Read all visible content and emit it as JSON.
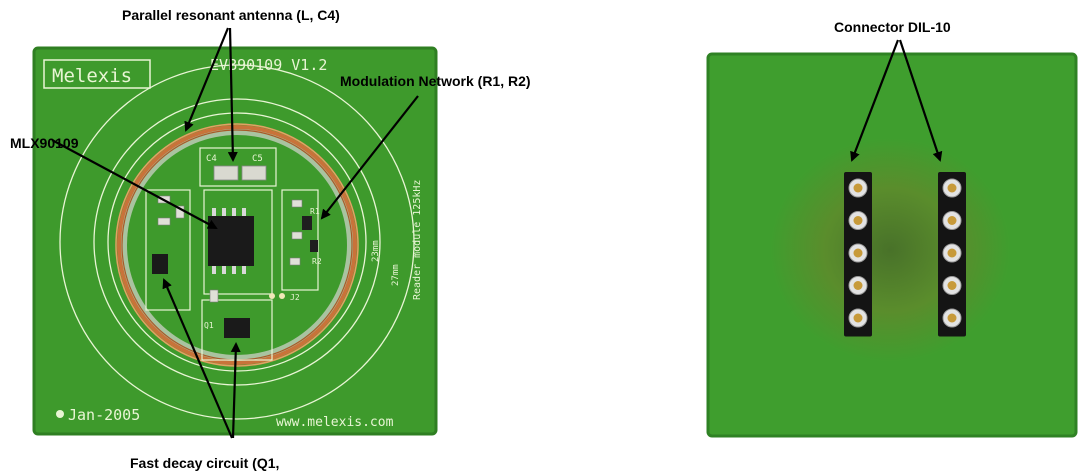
{
  "labels": {
    "antenna": "Parallel resonant antenna (L, C4)",
    "modulation": "Modulation Network (R1, R2)",
    "chip": "MLX90109",
    "fast_decay": "Fast decay circuit (Q1,",
    "connector": "Connector DIL-10"
  },
  "board_front": {
    "logo": "Melexis",
    "model": "EVB90109  V1.2",
    "side_text": "Reader module  125kHz",
    "date": "Jan-2005",
    "url": "www.melexis.com",
    "ring_23": "23mm",
    "ring_27": "27mm",
    "ref_c4": "C4",
    "ref_c5": "C5",
    "ref_r1": "R1",
    "ref_r2": "R2",
    "ref_q1": "Q1",
    "ref_j2": "J2"
  },
  "colors": {
    "pcb": "#3e9a2c",
    "pcb_dark": "#2f7f22",
    "silkscreen": "#e8f5d4",
    "copper_coil": "#c8733a",
    "ic_body": "#1a1a1a"
  },
  "connector": {
    "pins_per_row": 5,
    "rows": 2
  }
}
